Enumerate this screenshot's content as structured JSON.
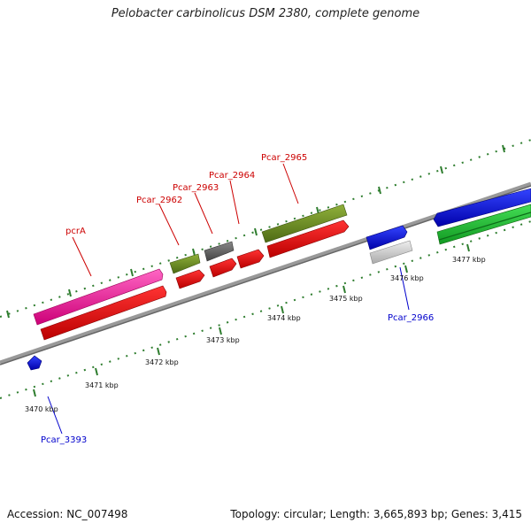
{
  "title": "Pelobacter carbinolicus DSM 2380, complete genome",
  "footer": {
    "accession": "Accession: NC_007498",
    "summary": "Topology: circular; Length: 3,665,893 bp; Genes: 3,415"
  },
  "axis_ticks": [
    "3470 kbp",
    "3471 kbp",
    "3472 kbp",
    "3473 kbp",
    "3474 kbp",
    "3475 kbp",
    "3476 kbp",
    "3477 kbp"
  ],
  "gene_labels": {
    "pcrA": "pcrA",
    "pcar_2962": "Pcar_2962",
    "pcar_2963": "Pcar_2963",
    "pcar_2964": "Pcar_2964",
    "pcar_2965": "Pcar_2965",
    "pcar_2966": "Pcar_2966",
    "pcar_3393": "Pcar_3393"
  },
  "colors": {
    "red_label": "#cc0000",
    "blue_label": "#0000cc",
    "backbone": "#888888",
    "tick": "#2e7d2e",
    "pcrA": "#ff33aa",
    "olive": "#6b8e23",
    "gray": "#666666",
    "cds_red": "#ee0000",
    "blue": "#0000ee",
    "light_gray": "#cccccc",
    "green": "#22bb33"
  }
}
